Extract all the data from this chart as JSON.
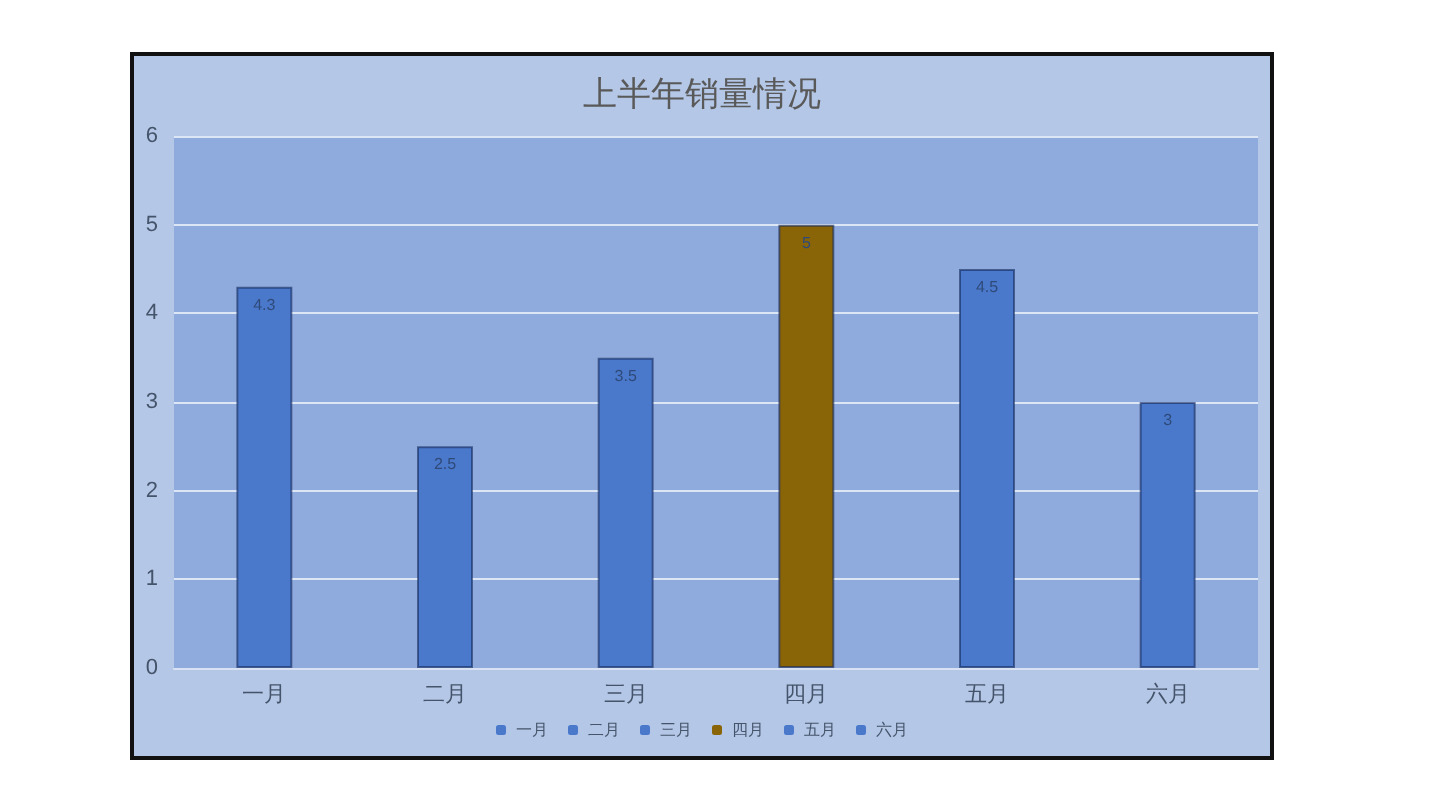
{
  "chart_data": {
    "type": "bar",
    "title": "上半年销量情况",
    "categories": [
      "一月",
      "二月",
      "三月",
      "四月",
      "五月",
      "六月"
    ],
    "series": [
      {
        "name": "一月",
        "color": "#4a79cc",
        "values": [
          4.3,
          null,
          null,
          null,
          null,
          null
        ]
      },
      {
        "name": "二月",
        "color": "#4a79cc",
        "values": [
          null,
          2.5,
          null,
          null,
          null,
          null
        ]
      },
      {
        "name": "三月",
        "color": "#4a79cc",
        "values": [
          null,
          null,
          3.5,
          null,
          null,
          null
        ]
      },
      {
        "name": "四月",
        "color": "#8a6508",
        "values": [
          null,
          null,
          null,
          5,
          null,
          null
        ]
      },
      {
        "name": "五月",
        "color": "#4a79cc",
        "values": [
          null,
          null,
          null,
          null,
          4.5,
          null
        ]
      },
      {
        "name": "六月",
        "color": "#4a79cc",
        "values": [
          null,
          null,
          null,
          null,
          null,
          3
        ]
      }
    ],
    "stacked": true,
    "ylim": [
      0,
      6
    ],
    "yticks": [
      0,
      1,
      2,
      3,
      4,
      5,
      6
    ],
    "grid": "y",
    "legend": "bottom",
    "data_labels": true
  }
}
